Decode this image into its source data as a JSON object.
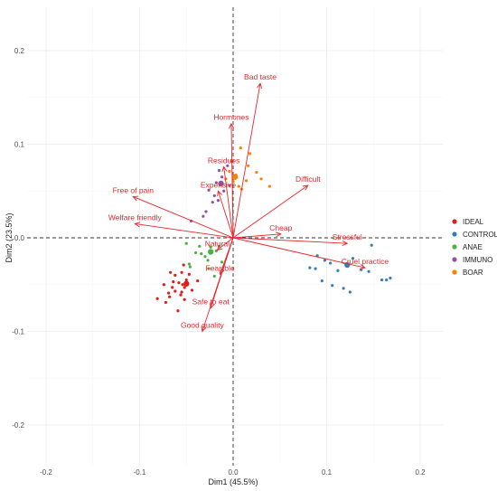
{
  "chart_data": {
    "type": "scatter",
    "title": "",
    "xlabel": "Dim1 (45.5%)",
    "ylabel": "Dim2 (23.5%)",
    "xlim": [
      -0.22,
      0.22
    ],
    "ylim": [
      -0.22,
      0.22
    ],
    "xticks": [
      "-0.2",
      "-0.1",
      "0.0",
      "0.1",
      "0.2"
    ],
    "yticks": [
      "-0.2",
      "-0.1",
      "0.0",
      "0.1",
      "0.2"
    ],
    "grid": true,
    "legend_position": "right",
    "arrow_color": "#e8262d",
    "variables": [
      {
        "label": "Bad taste",
        "x": 0.029,
        "y": 0.165
      },
      {
        "label": "Hormones",
        "x": -0.002,
        "y": 0.122
      },
      {
        "label": "Residues",
        "x": -0.01,
        "y": 0.076
      },
      {
        "label": "Expensive",
        "x": -0.016,
        "y": 0.05
      },
      {
        "label": "Free of pain",
        "x": -0.107,
        "y": 0.044
      },
      {
        "label": "Welfare friendly",
        "x": -0.105,
        "y": 0.015
      },
      {
        "label": "Difficult",
        "x": 0.08,
        "y": 0.056
      },
      {
        "label": "Cheap",
        "x": 0.051,
        "y": 0.004
      },
      {
        "label": "Stressful",
        "x": 0.122,
        "y": -0.006
      },
      {
        "label": "Cruel practice",
        "x": 0.141,
        "y": -0.032
      },
      {
        "label": "Natural",
        "x": -0.017,
        "y": -0.013
      },
      {
        "label": "Feasible",
        "x": -0.014,
        "y": -0.039
      },
      {
        "label": "Safe to eat",
        "x": -0.024,
        "y": -0.075
      },
      {
        "label": "Good quality",
        "x": -0.033,
        "y": -0.1
      }
    ],
    "series": [
      {
        "name": "IDEAL",
        "color": "#e41a1c",
        "centroid": [
          -0.05,
          -0.049
        ],
        "points": [
          [
            -0.062,
            -0.04
          ],
          [
            -0.055,
            -0.037
          ],
          [
            -0.065,
            -0.053
          ],
          [
            -0.069,
            -0.059
          ],
          [
            -0.058,
            -0.048
          ],
          [
            -0.05,
            -0.045
          ],
          [
            -0.047,
            -0.039
          ],
          [
            -0.052,
            -0.066
          ],
          [
            -0.072,
            -0.069
          ],
          [
            -0.062,
            -0.057
          ],
          [
            -0.054,
            -0.05
          ],
          [
            -0.064,
            -0.047
          ],
          [
            -0.052,
            -0.053
          ],
          [
            -0.081,
            -0.065
          ],
          [
            -0.067,
            -0.037
          ],
          [
            -0.053,
            -0.029
          ],
          [
            -0.059,
            -0.078
          ],
          [
            -0.074,
            -0.05
          ],
          [
            -0.056,
            -0.061
          ],
          [
            -0.044,
            -0.056
          ],
          [
            -0.038,
            -0.046
          ],
          [
            -0.055,
            -0.058
          ],
          [
            -0.068,
            -0.063
          ]
        ]
      },
      {
        "name": "CONTROL",
        "color": "#377eb8",
        "centroid": [
          0.122,
          -0.029
        ],
        "points": [
          [
            0.09,
            -0.019
          ],
          [
            0.098,
            -0.024
          ],
          [
            0.082,
            -0.032
          ],
          [
            0.095,
            -0.046
          ],
          [
            0.106,
            -0.051
          ],
          [
            0.118,
            -0.054
          ],
          [
            0.125,
            -0.058
          ],
          [
            0.137,
            -0.034
          ],
          [
            0.145,
            -0.036
          ],
          [
            0.148,
            -0.008
          ],
          [
            0.159,
            -0.045
          ],
          [
            0.168,
            -0.043
          ],
          [
            0.164,
            -0.045
          ],
          [
            0.128,
            -0.022
          ],
          [
            0.112,
            -0.035
          ],
          [
            0.121,
            -0.028
          ],
          [
            0.088,
            -0.033
          ],
          [
            0.122,
            -0.03
          ],
          [
            0.104,
            -0.027
          ]
        ]
      },
      {
        "name": "ANAE",
        "color": "#4daf4a",
        "centroid": [
          -0.024,
          -0.015
        ],
        "points": [
          [
            -0.03,
            -0.02
          ],
          [
            -0.047,
            -0.028
          ],
          [
            -0.015,
            -0.009
          ],
          [
            -0.026,
            -0.033
          ],
          [
            -0.05,
            -0.006
          ],
          [
            -0.024,
            -0.01
          ],
          [
            -0.034,
            -0.017
          ],
          [
            -0.012,
            -0.026
          ],
          [
            -0.036,
            -0.009
          ],
          [
            -0.046,
            -0.031
          ],
          [
            -0.02,
            -0.041
          ],
          [
            -0.027,
            -0.024
          ],
          [
            -0.04,
            -0.016
          ],
          [
            -0.018,
            -0.014
          ]
        ]
      },
      {
        "name": "IMMUNO",
        "color": "#984ea3",
        "centroid": [
          -0.013,
          0.058
        ],
        "points": [
          [
            -0.006,
            0.077
          ],
          [
            -0.015,
            0.072
          ],
          [
            -0.012,
            0.065
          ],
          [
            -0.004,
            0.056
          ],
          [
            -0.026,
            0.051
          ],
          [
            -0.02,
            0.045
          ],
          [
            -0.016,
            0.04
          ],
          [
            -0.029,
            0.028
          ],
          [
            -0.045,
            0.018
          ],
          [
            -0.032,
            0.023
          ],
          [
            -0.018,
            0.059
          ],
          [
            -0.01,
            0.05
          ],
          [
            -0.022,
            0.038
          ]
        ]
      },
      {
        "name": "BOAR",
        "color": "#ff7f00",
        "centroid": [
          0.002,
          0.065
        ],
        "points": [
          [
            0.018,
            0.09
          ],
          [
            0.008,
            0.096
          ],
          [
            -0.002,
            0.082
          ],
          [
            -0.004,
            0.071
          ],
          [
            0.003,
            0.067
          ],
          [
            0.016,
            0.077
          ],
          [
            0.014,
            0.061
          ],
          [
            0.006,
            0.055
          ],
          [
            0.039,
            0.055
          ],
          [
            0.03,
            0.063
          ],
          [
            0.0,
            0.06
          ],
          [
            0.009,
            0.052
          ],
          [
            0.025,
            0.07
          ],
          [
            -0.008,
            0.063
          ]
        ]
      }
    ]
  }
}
